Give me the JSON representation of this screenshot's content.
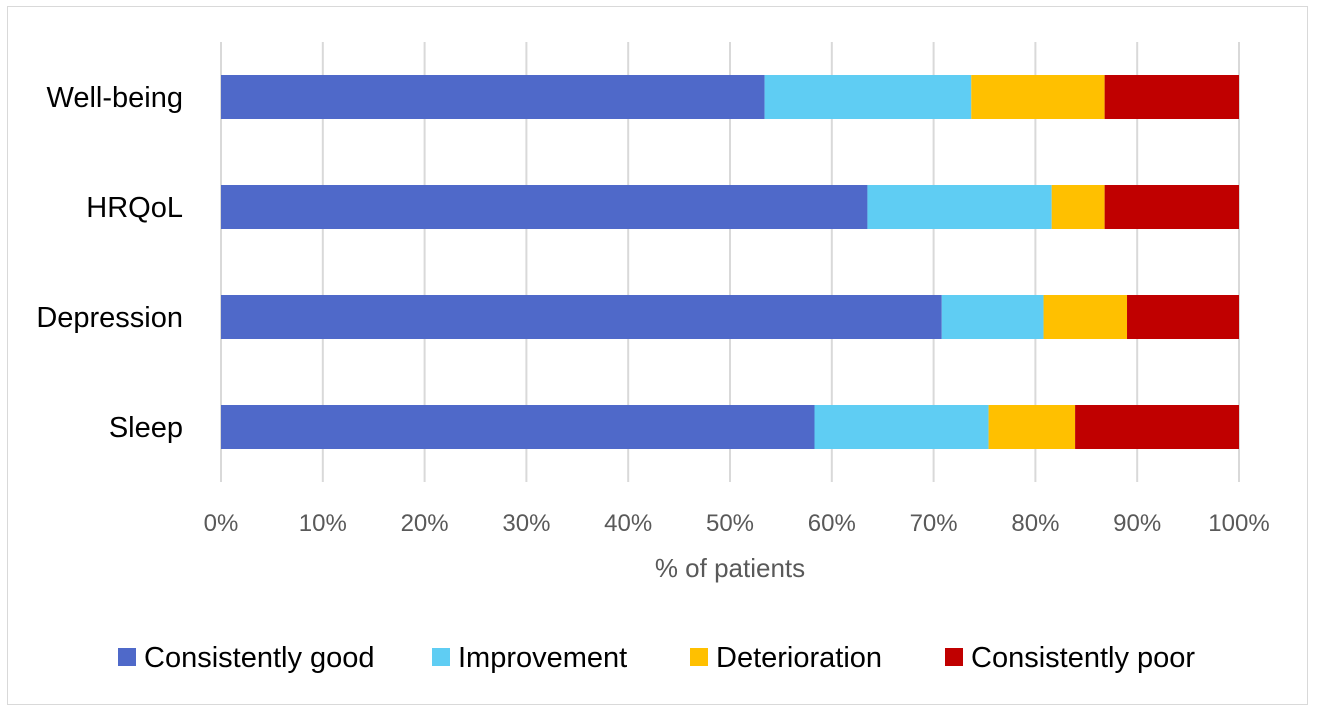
{
  "chart_data": {
    "type": "bar",
    "orientation": "horizontal",
    "stacked": "percent",
    "categories": [
      "Well-being",
      "HRQoL",
      "Depression",
      "Sleep"
    ],
    "series": [
      {
        "name": "Consistently good",
        "color": "#4f69c9",
        "values": [
          53.4,
          63.5,
          70.8,
          58.3
        ]
      },
      {
        "name": "Improvement",
        "color": "#5fcdf3",
        "values": [
          20.3,
          18.1,
          10.0,
          17.1
        ]
      },
      {
        "name": "Deterioration",
        "color": "#ffc000",
        "values": [
          13.1,
          5.2,
          8.2,
          8.5
        ]
      },
      {
        "name": "Consistently poor",
        "color": "#c00000",
        "values": [
          13.2,
          13.2,
          11.0,
          16.1
        ]
      }
    ],
    "x_ticks": [
      "0%",
      "10%",
      "20%",
      "30%",
      "40%",
      "50%",
      "60%",
      "70%",
      "80%",
      "90%",
      "100%"
    ],
    "xlim": [
      0,
      100
    ],
    "xlabel": "% of patients",
    "ylabel": "",
    "grid": "vertical",
    "legend_position": "bottom"
  }
}
